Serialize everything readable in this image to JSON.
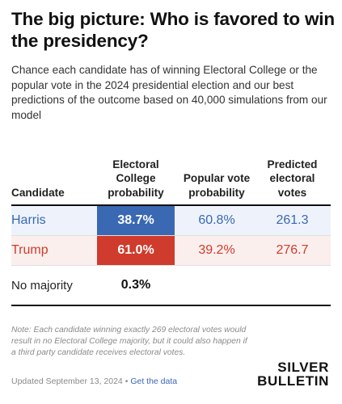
{
  "title": "The big picture: Who is favored to win the presidency?",
  "subtitle": "Chance each candidate has of winning Electoral College or the popular vote in the 2024 presidential election and our best predictions of the outcome based on 40,000 simulations from our model",
  "chart_data": {
    "type": "table",
    "columns": [
      "Candidate",
      "Electoral College probability",
      "Popular vote probability",
      "Predicted electoral votes"
    ],
    "rows": [
      {
        "candidate": "Harris",
        "ec_prob": "38.7%",
        "pv_prob": "60.8%",
        "ev": "261.3",
        "color": "#3a68b3",
        "bg": "#eef3fb"
      },
      {
        "candidate": "Trump",
        "ec_prob": "61.0%",
        "pv_prob": "39.2%",
        "ev": "276.7",
        "color": "#cf3b2c",
        "bg": "#fbefed"
      }
    ],
    "no_majority": {
      "label": "No majority",
      "ec_prob": "0.3%"
    }
  },
  "note": "Note: Each candidate winning exactly 269 electoral votes would result in no Electoral College majority, but it could also happen if a third party candidate receives electoral votes.",
  "footer": {
    "updated": "Updated September 13, 2024",
    "separator": "•",
    "link": "Get the data"
  },
  "brand": {
    "line1": "SILVER",
    "line2": "BULLETIN"
  }
}
